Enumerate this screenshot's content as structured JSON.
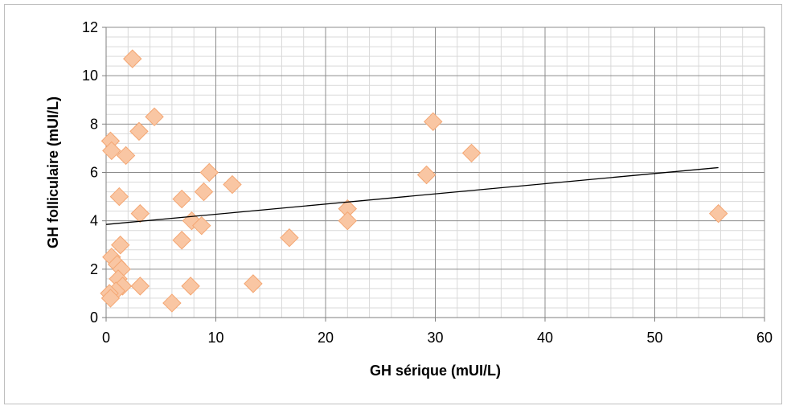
{
  "chart_data": {
    "type": "scatter",
    "title": "",
    "xlabel": "GH sérique (mUI/L)",
    "ylabel": "GH folliculaire (mUI/L)",
    "xlim": [
      0,
      60
    ],
    "ylim": [
      0,
      12
    ],
    "xticks": [
      "0",
      "10",
      "20",
      "30",
      "40",
      "50",
      "60"
    ],
    "yticks": [
      "0",
      "2",
      "4",
      "6",
      "8",
      "10",
      "12"
    ],
    "grid": true,
    "legend": "none",
    "marker": "diamond",
    "marker_color": "#f9c6a3",
    "marker_edge_color": "#f4a672",
    "trendline_color": "#000000",
    "points": [
      {
        "x": 2.4,
        "y": 10.7
      },
      {
        "x": 4.4,
        "y": 8.3
      },
      {
        "x": 0.4,
        "y": 7.3
      },
      {
        "x": 0.5,
        "y": 6.9
      },
      {
        "x": 3.0,
        "y": 7.7
      },
      {
        "x": 1.8,
        "y": 6.7
      },
      {
        "x": 1.2,
        "y": 5.0
      },
      {
        "x": 3.1,
        "y": 4.3
      },
      {
        "x": 1.3,
        "y": 3.0
      },
      {
        "x": 0.5,
        "y": 2.5
      },
      {
        "x": 1.0,
        "y": 2.2
      },
      {
        "x": 1.4,
        "y": 2.0
      },
      {
        "x": 1.1,
        "y": 1.6
      },
      {
        "x": 1.5,
        "y": 1.3
      },
      {
        "x": 0.9,
        "y": 1.1
      },
      {
        "x": 0.3,
        "y": 1.0
      },
      {
        "x": 0.4,
        "y": 0.8
      },
      {
        "x": 3.1,
        "y": 1.3
      },
      {
        "x": 6.0,
        "y": 0.6
      },
      {
        "x": 7.7,
        "y": 1.3
      },
      {
        "x": 6.9,
        "y": 4.9
      },
      {
        "x": 6.9,
        "y": 3.2
      },
      {
        "x": 7.8,
        "y": 4.0
      },
      {
        "x": 8.7,
        "y": 3.8
      },
      {
        "x": 8.9,
        "y": 5.2
      },
      {
        "x": 9.4,
        "y": 6.0
      },
      {
        "x": 11.5,
        "y": 5.5
      },
      {
        "x": 13.4,
        "y": 1.4
      },
      {
        "x": 16.7,
        "y": 3.3
      },
      {
        "x": 22.0,
        "y": 4.5
      },
      {
        "x": 22.0,
        "y": 4.0
      },
      {
        "x": 29.2,
        "y": 5.9
      },
      {
        "x": 29.8,
        "y": 8.1
      },
      {
        "x": 33.3,
        "y": 6.8
      },
      {
        "x": 55.8,
        "y": 4.3
      }
    ],
    "trendline": {
      "x": [
        0,
        55.8
      ],
      "y": [
        3.85,
        6.2
      ]
    }
  }
}
